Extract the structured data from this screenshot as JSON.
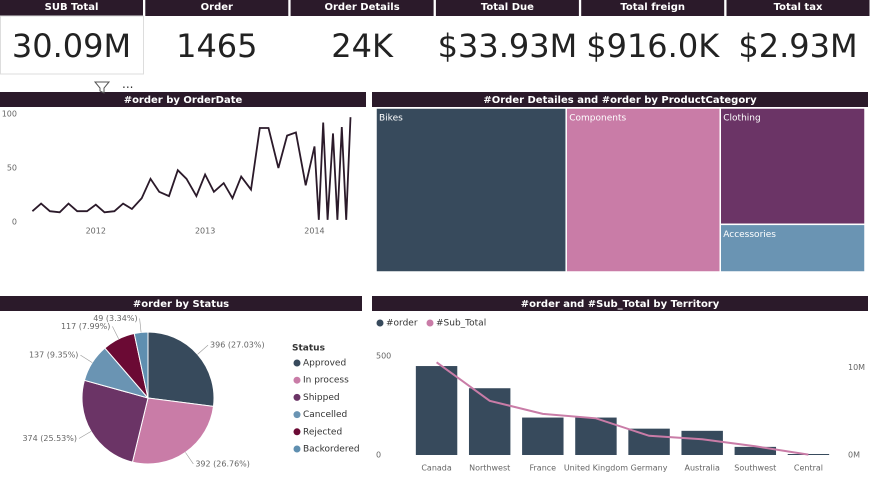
{
  "cards": [
    {
      "title": "SUB Total",
      "value": "30.09M"
    },
    {
      "title": "Order",
      "value": "1465"
    },
    {
      "title": "Order Details",
      "value": "24K"
    },
    {
      "title": "Total Due",
      "value": "$33.93M"
    },
    {
      "title": "Total freign",
      "value": "$916.0K"
    },
    {
      "title": "Total tax",
      "value": "$2.93M"
    }
  ],
  "chart_data": [
    {
      "type": "line",
      "title": "#order by OrderDate",
      "color": "#2b1a2a",
      "x": [
        2011.42,
        2011.5,
        2011.58,
        2011.67,
        2011.75,
        2011.83,
        2011.92,
        2012.0,
        2012.08,
        2012.17,
        2012.25,
        2012.33,
        2012.42,
        2012.5,
        2012.58,
        2012.67,
        2012.75,
        2012.83,
        2012.92,
        2013.0,
        2013.08,
        2013.17,
        2013.25,
        2013.33,
        2013.42,
        2013.5,
        2013.58,
        2013.67,
        2013.75,
        2013.83,
        2013.92,
        2014.0,
        2014.04,
        2014.08,
        2014.12,
        2014.17,
        2014.21,
        2014.25,
        2014.29,
        2014.33
      ],
      "values": [
        10,
        17,
        10,
        9,
        17,
        10,
        10,
        16,
        9,
        10,
        17,
        12,
        22,
        40,
        28,
        24,
        48,
        40,
        24,
        44,
        28,
        36,
        22,
        42,
        30,
        87,
        87,
        50,
        80,
        83,
        34,
        70,
        2,
        92,
        2,
        82,
        2,
        88,
        2,
        97
      ],
      "xlim": [
        2011.38,
        2014.38
      ],
      "xticks": [
        2012,
        2013,
        2014
      ],
      "ylim": [
        0,
        100
      ],
      "yticks": [
        0,
        50,
        100
      ]
    },
    {
      "type": "treemap",
      "title": "#Order Detailes and #order by ProductCategory",
      "categories": [
        "Bikes",
        "Components",
        "Clothing",
        "Accessories"
      ],
      "values": [
        38.9,
        31.5,
        21,
        8.6
      ],
      "colors": [
        "#374a5c",
        "#c97ca7",
        "#6b3466",
        "#6a94b3"
      ]
    },
    {
      "type": "pie",
      "title": "#order by Status",
      "legend_title": "Status",
      "categories": [
        "Approved",
        "In process",
        "Shipped",
        "Cancelled",
        "Rejected",
        "Backordered"
      ],
      "values": [
        396,
        392,
        374,
        137,
        117,
        49
      ],
      "value_labels": [
        "396 (27.03%)",
        "392 (26.76%)",
        "374 (25.53%)",
        "137 (9.35%)",
        "117 (7.99%)",
        "49 (3.34%)"
      ],
      "colors": [
        "#374a5c",
        "#c97ca7",
        "#6b3466",
        "#6a94b3",
        "#6b0a34",
        "#5f8fb0"
      ]
    },
    {
      "type": "bar",
      "title": "#order and #Sub_Total by Territory",
      "categories": [
        "Canada",
        "Northwest",
        "France",
        "United Kingdom",
        "Germany",
        "Australia",
        "Southwest",
        "Central"
      ],
      "series": [
        {
          "name": "#order",
          "color": "#374a5c",
          "values": [
            449,
            337,
            189,
            189,
            133,
            122,
            41,
            5
          ]
        },
        {
          "name": "#Sub_Total",
          "color": "#c97ca7",
          "type": "line",
          "axis": "y2",
          "values": [
            10600000,
            6200000,
            4700000,
            4200000,
            2200000,
            1800000,
            1000000,
            50000
          ]
        }
      ],
      "ylim": [
        0,
        530
      ],
      "yticks": [
        0,
        500
      ],
      "y2lim": [
        0,
        12000000
      ],
      "y2ticks": [
        {
          "value": 0,
          "label": "0M"
        },
        {
          "value": 10000000,
          "label": "10M"
        }
      ]
    }
  ]
}
